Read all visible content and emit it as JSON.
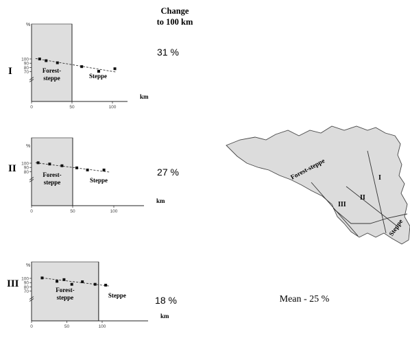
{
  "header": {
    "line1": "Change",
    "line2": "to 100 km"
  },
  "mean_label": "Mean - 25 %",
  "map": {
    "region_label_forest": "Forest-steppe",
    "region_label_steppe": "Steppe",
    "profile_labels": [
      "I",
      "II",
      "III"
    ]
  },
  "chart_data": [
    {
      "type": "scatter",
      "panel_label": "I",
      "change_label": "31 %",
      "ylabel": "%",
      "xlabel": "km",
      "zone_left": "Forest-\nsteppe",
      "zone_right": "Steppe",
      "boundary_km": 50,
      "xlim": [
        0,
        110
      ],
      "ylim": [
        0,
        110
      ],
      "yticks": [
        100,
        90,
        80,
        70
      ],
      "xticks": [
        0,
        50,
        100
      ],
      "x": [
        10,
        18,
        32,
        62,
        83,
        103
      ],
      "y": [
        100,
        96,
        91,
        82,
        71,
        77
      ],
      "trend": [
        [
          5,
          101
        ],
        [
          105,
          69
        ]
      ]
    },
    {
      "type": "scatter",
      "panel_label": "II",
      "change_label": "27 %",
      "ylabel": "%",
      "xlabel": "km",
      "zone_left": "Forest-\nsteppe",
      "zone_right": "Steppe",
      "boundary_km": 50,
      "xlim": [
        0,
        140
      ],
      "ylim": [
        0,
        110
      ],
      "yticks": [
        100,
        90,
        80
      ],
      "xticks": [
        0,
        50,
        100
      ],
      "x": [
        8,
        22,
        37,
        55,
        68,
        88
      ],
      "y": [
        101,
        98,
        94,
        89,
        84,
        84
      ],
      "trend": [
        [
          5,
          101
        ],
        [
          95,
          79
        ]
      ]
    },
    {
      "type": "scatter",
      "panel_label": "III",
      "change_label": "18 %",
      "ylabel": "%",
      "xlabel": "km",
      "zone_left": "Forest-\nsteppe",
      "zone_right": "Steppe",
      "boundary_km": 95,
      "xlim": [
        0,
        160
      ],
      "ylim": [
        0,
        110
      ],
      "yticks": [
        100,
        90,
        80,
        70
      ],
      "xticks": [
        0,
        50,
        100
      ],
      "x": [
        15,
        36,
        46,
        57,
        72,
        90,
        105
      ],
      "y": [
        101,
        93,
        97,
        86,
        92,
        86,
        84
      ],
      "trend": [
        [
          15,
          101
        ],
        [
          110,
          82
        ]
      ]
    }
  ]
}
